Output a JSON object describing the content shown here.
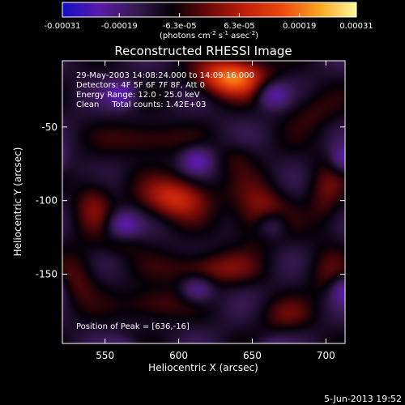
{
  "colorbar": {
    "ticks": [
      "-0.00031",
      "-0.00019",
      "-6.3e-05",
      "6.3e-05",
      "0.00019",
      "0.00031"
    ],
    "tick_values": [
      -0.00031,
      -0.00019,
      -6.3e-05,
      6.3e-05,
      0.00019,
      0.00031
    ],
    "range": [
      -0.00031,
      0.00031
    ],
    "units_html": "(photons cm<tspan baseline-shift=\"super\" font-size=\"7\">-2</tspan> s<tspan baseline-shift=\"super\" font-size=\"7\">-1</tspan> asec<tspan baseline-shift=\"super\" font-size=\"7\">-2</tspan>)"
  },
  "chart_data": {
    "type": "heatmap",
    "title": "Reconstructed RHESSI Image",
    "xlabel": "Heliocentric X (arcsec)",
    "ylabel": "Heliocentric Y (arcsec)",
    "xlim": [
      521,
      713
    ],
    "ylim": [
      -197,
      -5
    ],
    "xticks": [
      550,
      600,
      650,
      700
    ],
    "yticks": [
      -50,
      -100,
      -150
    ],
    "colormap": [
      "#1010c8",
      "#5a1aa6",
      "#381a52",
      "#050008",
      "#6e0a08",
      "#c2200a",
      "#ec4a0e",
      "#f9a520",
      "#fffb9a"
    ],
    "blobs": [
      {
        "x": 636,
        "y": -16,
        "value": 0.00031,
        "sx": 16,
        "sy": 9
      },
      {
        "x": 598,
        "y": -98,
        "value": 0.00021,
        "sx": 16,
        "sy": 10
      },
      {
        "x": 655,
        "y": -108,
        "value": 0.00015,
        "sx": 13,
        "sy": 14
      },
      {
        "x": 578,
        "y": -58,
        "value": 0.00011,
        "sx": 17,
        "sy": 8
      },
      {
        "x": 620,
        "y": -146,
        "value": 0.00013,
        "sx": 22,
        "sy": 8
      },
      {
        "x": 582,
        "y": -170,
        "value": 0.00011,
        "sx": 15,
        "sy": 8
      },
      {
        "x": 542,
        "y": -102,
        "value": 0.00011,
        "sx": 9,
        "sy": 13
      },
      {
        "x": 700,
        "y": -96,
        "value": 9e-05,
        "sx": 9,
        "sy": 18
      },
      {
        "x": 690,
        "y": -40,
        "value": 7e-05,
        "sx": 13,
        "sy": 10
      },
      {
        "x": 532,
        "y": -152,
        "value": 9e-05,
        "sx": 10,
        "sy": 14
      },
      {
        "x": 672,
        "y": -178,
        "value": 8e-05,
        "sx": 14,
        "sy": 8
      },
      {
        "x": 640,
        "y": -70,
        "value": 6e-05,
        "sx": 9,
        "sy": 8
      },
      {
        "x": 700,
        "y": -150,
        "value": 7e-05,
        "sx": 10,
        "sy": 12
      },
      {
        "x": 560,
        "y": -130,
        "value": 5e-05,
        "sx": 12,
        "sy": 6
      }
    ]
  },
  "annotations": [
    "29-May-2003 14:08:24.000 to 14:09:16.000",
    "Detectors: 4F 5F 6F 7F 8F, Att 0",
    "Energy Range: 12.0 - 25.0 keV",
    "Clean     Total counts: 1.42E+03"
  ],
  "peak_label": "Position of Peak = [636,-16]",
  "footer_date": "5-Jun-2013 19:52"
}
